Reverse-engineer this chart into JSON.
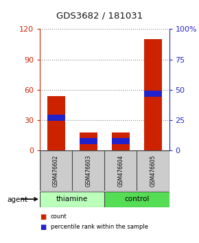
{
  "title": "GDS3682 / 181031",
  "categories": [
    "GSM476602",
    "GSM476603",
    "GSM476604",
    "GSM476605"
  ],
  "count_values": [
    54,
    18,
    18,
    110
  ],
  "percentile_values": [
    27,
    8,
    8,
    47
  ],
  "percentile_thickness": 5,
  "bar_color_red": "#cc2200",
  "bar_color_blue": "#2222cc",
  "left_yticks": [
    0,
    30,
    60,
    90,
    120
  ],
  "right_yticks": [
    0,
    25,
    50,
    75,
    100
  ],
  "right_yticklabels": [
    "0",
    "25",
    "50",
    "75",
    "100%"
  ],
  "ylim_left": [
    0,
    120
  ],
  "ylim_right": [
    0,
    100
  ],
  "left_axis_color": "#cc2200",
  "right_axis_color": "#2222cc",
  "grid_color": "#888888",
  "groups": [
    {
      "label": "thiamine",
      "indices": [
        0,
        1
      ],
      "color": "#bbffbb"
    },
    {
      "label": "control",
      "indices": [
        2,
        3
      ],
      "color": "#55dd55"
    }
  ],
  "agent_label": "agent",
  "legend_items": [
    {
      "label": "count",
      "color": "#cc2200"
    },
    {
      "label": "percentile rank within the sample",
      "color": "#2222cc"
    }
  ],
  "bar_width": 0.55,
  "title_color": "#111111",
  "figure_bg": "#ffffff",
  "axes_bg": "#ffffff",
  "sample_label_bg": "#cccccc",
  "sample_label_bg_border": "#444444"
}
